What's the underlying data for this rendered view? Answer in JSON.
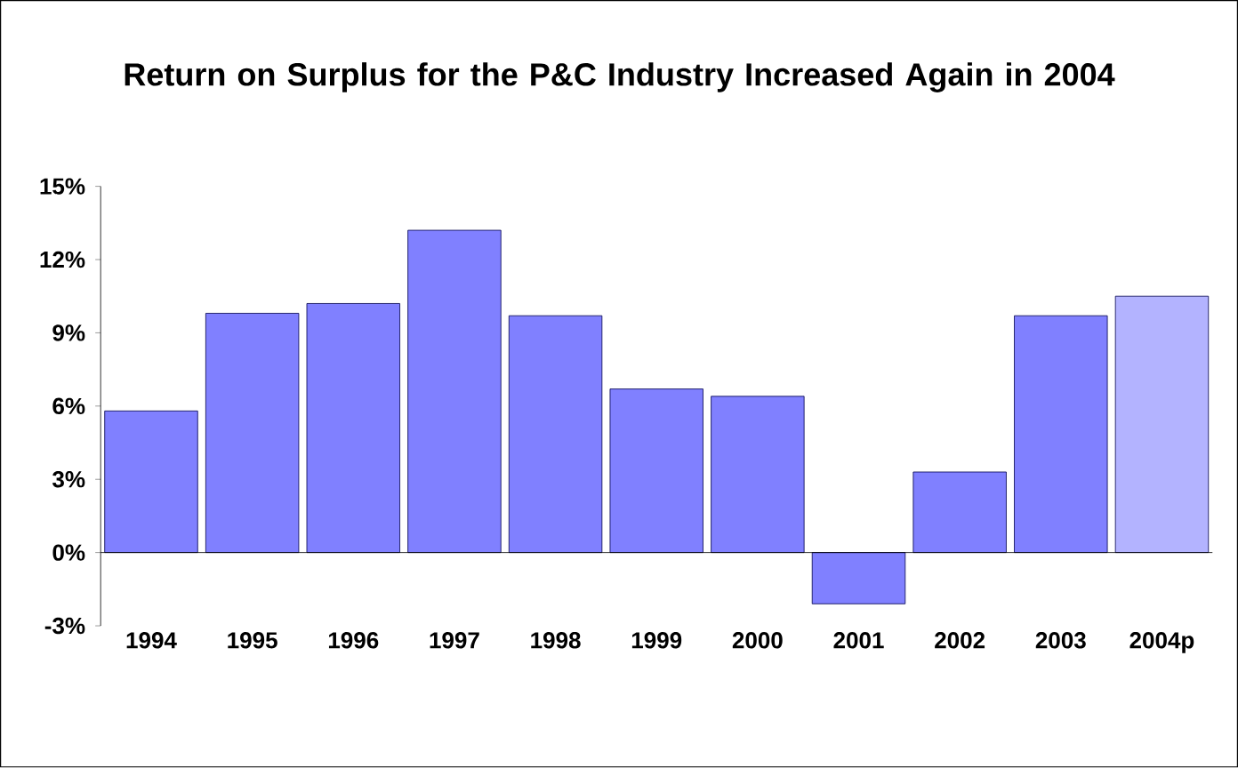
{
  "chart_data": {
    "type": "bar",
    "title": "Return on Surplus for the P&C Industry Increased Again in 2004",
    "categories": [
      "1994",
      "1995",
      "1996",
      "1997",
      "1998",
      "1999",
      "2000",
      "2001",
      "2002",
      "2003",
      "2004p"
    ],
    "values": [
      5.8,
      9.8,
      10.2,
      13.2,
      9.7,
      6.7,
      6.4,
      -2.1,
      3.3,
      9.7,
      10.5
    ],
    "colors": [
      "#8080ff",
      "#8080ff",
      "#8080ff",
      "#8080ff",
      "#8080ff",
      "#8080ff",
      "#8080ff",
      "#8080ff",
      "#8080ff",
      "#8080ff",
      "#b3b3ff"
    ],
    "ylim": [
      -3,
      15
    ],
    "yticks": [
      {
        "value": -3,
        "label": "-3%"
      },
      {
        "value": 0,
        "label": "0%"
      },
      {
        "value": 3,
        "label": "3%"
      },
      {
        "value": 6,
        "label": "6%"
      },
      {
        "value": 9,
        "label": "9%"
      },
      {
        "value": 12,
        "label": "12%"
      },
      {
        "value": 15,
        "label": "15%"
      }
    ]
  }
}
